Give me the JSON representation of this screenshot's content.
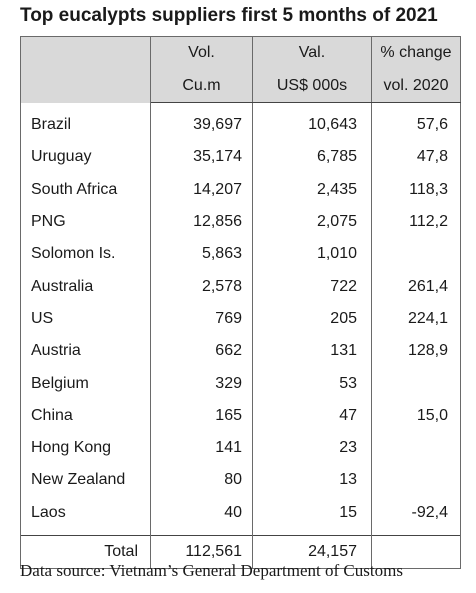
{
  "title": "Top eucalypts suppliers first 5 months of 2021",
  "headers": {
    "row1": [
      "Vol.",
      "Val.",
      "% change"
    ],
    "row2": [
      "Cu.m",
      "US$ 000s",
      "vol. 2020"
    ]
  },
  "rows": [
    {
      "country": "Brazil",
      "vol": "39,697",
      "val": "10,643",
      "pct": "57,6"
    },
    {
      "country": "Uruguay",
      "vol": "35,174",
      "val": "6,785",
      "pct": "47,8"
    },
    {
      "country": "South Africa",
      "vol": "14,207",
      "val": "2,435",
      "pct": "118,3"
    },
    {
      "country": "PNG",
      "vol": "12,856",
      "val": "2,075",
      "pct": "112,2"
    },
    {
      "country": "Solomon Is.",
      "vol": "5,863",
      "val": "1,010",
      "pct": ""
    },
    {
      "country": "Australia",
      "vol": "2,578",
      "val": "722",
      "pct": "261,4"
    },
    {
      "country": "US",
      "vol": "769",
      "val": "205",
      "pct": "224,1"
    },
    {
      "country": "Austria",
      "vol": "662",
      "val": "131",
      "pct": "128,9"
    },
    {
      "country": "Belgium",
      "vol": "329",
      "val": "53",
      "pct": ""
    },
    {
      "country": "China",
      "vol": "165",
      "val": "47",
      "pct": "15,0"
    },
    {
      "country": "Hong Kong",
      "vol": "141",
      "val": "23",
      "pct": ""
    },
    {
      "country": "New Zealand",
      "vol": "80",
      "val": "13",
      "pct": ""
    },
    {
      "country": "Laos",
      "vol": "40",
      "val": "15",
      "pct": "-92,4"
    }
  ],
  "total": {
    "label": "Total",
    "vol": "112,561",
    "val": "24,157",
    "pct": ""
  },
  "source": "Data source: Vietnam’s General Department of Customs"
}
